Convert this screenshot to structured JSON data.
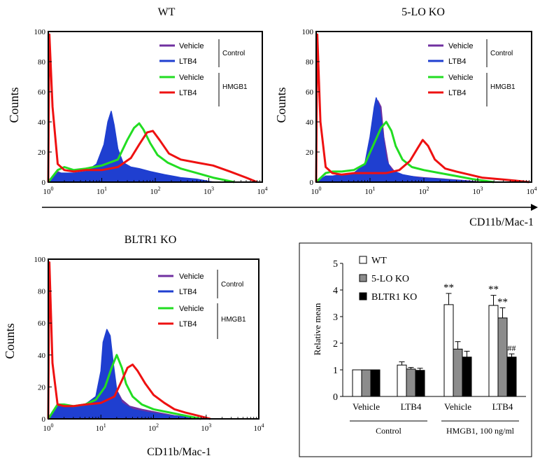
{
  "figure": {
    "shared_x_label": "CD11b/Mac-1",
    "bottom_x_label": "CD11b/Mac-1"
  },
  "chart_data": [
    {
      "type": "area",
      "title": "WT",
      "ylabel": "Counts",
      "xlabel": "",
      "x_scale": "log",
      "xlim": [
        1,
        10000
      ],
      "ylim": [
        0,
        100
      ],
      "yticks": [
        "0",
        "20",
        "40",
        "60",
        "80",
        "100"
      ],
      "xticks": [
        "10",
        "10",
        "10",
        "10",
        "10"
      ],
      "xtick_exponents": [
        "0",
        "1",
        "2",
        "3",
        "4"
      ],
      "legend": {
        "entries": [
          "Vehicle",
          "LTB4",
          "Vehicle",
          "LTB4"
        ],
        "groups": [
          "Control",
          "HMGB1"
        ]
      },
      "series": [
        {
          "name": "Control Vehicle",
          "color": "#7030a0",
          "fill": true,
          "x": [
            1,
            1.5,
            2,
            3,
            5,
            8,
            11,
            14,
            17,
            22,
            30,
            45,
            70,
            110,
            200,
            400,
            800,
            1500
          ],
          "y": [
            0,
            7,
            5,
            5,
            6,
            9,
            16,
            30,
            14,
            8,
            6,
            5,
            4,
            3,
            2,
            1,
            0.5,
            0
          ]
        },
        {
          "name": "Control LTB4",
          "color": "#1f3fd0",
          "fill": true,
          "x": [
            1,
            1.5,
            2,
            3,
            5,
            8,
            11,
            13,
            15,
            17,
            20,
            25,
            35,
            50,
            80,
            150,
            300,
            600,
            1200
          ],
          "y": [
            0,
            6,
            6,
            6,
            7,
            12,
            25,
            40,
            47,
            38,
            22,
            13,
            10,
            9,
            7,
            5,
            3,
            2,
            0
          ]
        },
        {
          "name": "HMGB1 Vehicle",
          "color": "#22dd22",
          "fill": false,
          "x": [
            1,
            1.5,
            2,
            3,
            5,
            10,
            20,
            30,
            40,
            50,
            60,
            80,
            110,
            170,
            300,
            600,
            1200,
            3000
          ],
          "y": [
            0,
            8,
            10,
            8,
            9,
            11,
            15,
            28,
            36,
            39,
            35,
            26,
            18,
            13,
            9,
            6,
            3,
            0
          ]
        },
        {
          "name": "HMGB1 LTB4",
          "color": "#ee1111",
          "fill": false,
          "x": [
            1,
            1.05,
            1.2,
            1.5,
            2,
            3,
            5,
            10,
            20,
            35,
            50,
            70,
            90,
            120,
            180,
            300,
            600,
            1200,
            2500,
            5000,
            8000
          ],
          "y": [
            0,
            98,
            50,
            12,
            8,
            7,
            8,
            8,
            10,
            16,
            25,
            33,
            34,
            28,
            19,
            15,
            13,
            11,
            7,
            3,
            0
          ]
        }
      ]
    },
    {
      "type": "area",
      "title": "5-LO KO",
      "ylabel": "Counts",
      "xlabel": "",
      "x_scale": "log",
      "xlim": [
        1,
        10000
      ],
      "ylim": [
        0,
        100
      ],
      "yticks": [
        "0",
        "20",
        "40",
        "60",
        "80",
        "100"
      ],
      "xticks": [
        "10",
        "10",
        "10",
        "10",
        "10"
      ],
      "xtick_exponents": [
        "0",
        "1",
        "2",
        "3",
        "4"
      ],
      "legend": {
        "entries": [
          "Vehicle",
          "LTB4",
          "Vehicle",
          "LTB4"
        ],
        "groups": [
          "Control",
          "HMGB1"
        ]
      },
      "series": [
        {
          "name": "Control Vehicle",
          "color": "#7030a0",
          "fill": true,
          "x": [
            1,
            1.5,
            2,
            3,
            5,
            8,
            10,
            12,
            14,
            16,
            18,
            22,
            30,
            50,
            100,
            250,
            600,
            1200
          ],
          "y": [
            0,
            4,
            4,
            5,
            6,
            10,
            25,
            44,
            54,
            50,
            30,
            12,
            6,
            4,
            3,
            2,
            1,
            0
          ]
        },
        {
          "name": "Control LTB4",
          "color": "#1f3fd0",
          "fill": true,
          "x": [
            1,
            1.5,
            2,
            3,
            5,
            8,
            10,
            12,
            13,
            15,
            17,
            20,
            25,
            40,
            80,
            200,
            500,
            1000
          ],
          "y": [
            0,
            4,
            4,
            5,
            6,
            12,
            30,
            50,
            56,
            50,
            34,
            15,
            8,
            5,
            3,
            2,
            1,
            0
          ]
        },
        {
          "name": "HMGB1 Vehicle",
          "color": "#22dd22",
          "fill": false,
          "x": [
            1,
            1.5,
            2,
            3,
            5,
            8,
            12,
            16,
            20,
            25,
            30,
            40,
            60,
            100,
            200,
            400,
            800,
            2000
          ],
          "y": [
            0,
            6,
            7,
            7,
            8,
            12,
            26,
            36,
            40,
            34,
            24,
            15,
            10,
            8,
            6,
            4,
            2,
            0
          ]
        },
        {
          "name": "HMGB1 LTB4",
          "color": "#ee1111",
          "fill": false,
          "x": [
            1,
            1.05,
            1.2,
            1.5,
            2,
            3,
            5,
            10,
            20,
            35,
            55,
            75,
            95,
            120,
            160,
            250,
            400,
            700,
            1200,
            2500,
            5000,
            9000
          ],
          "y": [
            0,
            98,
            40,
            10,
            6,
            5,
            6,
            6,
            6,
            8,
            14,
            22,
            28,
            24,
            15,
            9,
            7,
            5,
            3,
            2,
            1,
            0
          ]
        }
      ]
    },
    {
      "type": "area",
      "title": "BLTR1 KO",
      "ylabel": "Counts",
      "xlabel": "CD11b/Mac-1",
      "x_scale": "log",
      "xlim": [
        1,
        10000
      ],
      "ylim": [
        0,
        100
      ],
      "yticks": [
        "0",
        "20",
        "40",
        "60",
        "80",
        "100"
      ],
      "xticks": [
        "10",
        "10",
        "10",
        "10",
        "10"
      ],
      "xtick_exponents": [
        "0",
        "1",
        "2",
        "3",
        "4"
      ],
      "legend": {
        "entries": [
          "Vehicle",
          "LTB4",
          "Vehicle",
          "LTB4"
        ],
        "groups": [
          "Control",
          "HMGB1"
        ]
      },
      "series": [
        {
          "name": "Control Vehicle",
          "color": "#7030a0",
          "fill": true,
          "x": [
            1,
            1.5,
            2,
            3,
            5,
            8,
            10,
            12,
            14,
            16,
            20,
            25,
            35,
            60,
            120,
            250,
            500,
            1000
          ],
          "y": [
            0,
            8,
            8,
            7,
            8,
            12,
            24,
            40,
            46,
            36,
            18,
            12,
            8,
            6,
            4,
            2,
            1,
            0
          ]
        },
        {
          "name": "Control LTB4",
          "color": "#1f3fd0",
          "fill": true,
          "x": [
            1,
            1.5,
            2,
            3,
            5,
            8,
            10,
            11,
            13,
            15,
            17,
            20,
            25,
            40,
            80,
            200,
            500,
            1000
          ],
          "y": [
            0,
            9,
            9,
            8,
            9,
            14,
            30,
            48,
            56,
            52,
            36,
            18,
            10,
            6,
            4,
            2,
            1,
            0
          ]
        },
        {
          "name": "HMGB1 Vehicle",
          "color": "#22dd22",
          "fill": false,
          "x": [
            1,
            1.5,
            2,
            3,
            5,
            8,
            12,
            16,
            20,
            25,
            30,
            40,
            60,
            100,
            200,
            400,
            800
          ],
          "y": [
            0,
            9,
            9,
            8,
            9,
            12,
            20,
            32,
            40,
            32,
            22,
            14,
            9,
            6,
            4,
            2,
            0
          ]
        },
        {
          "name": "HMGB1 LTB4",
          "color": "#ee1111",
          "fill": false,
          "x": [
            1,
            1.05,
            1.2,
            1.5,
            2,
            3,
            5,
            10,
            18,
            25,
            32,
            40,
            50,
            70,
            100,
            160,
            250,
            400,
            700,
            1200
          ],
          "y": [
            0,
            98,
            35,
            9,
            8,
            8,
            9,
            10,
            14,
            24,
            32,
            34,
            30,
            22,
            15,
            10,
            6,
            4,
            2,
            0
          ]
        }
      ]
    },
    {
      "type": "bar",
      "title": "",
      "ylabel": "Relative mean",
      "xlabel": "",
      "ylim": [
        0,
        5
      ],
      "yticks": [
        "0",
        "1",
        "2",
        "3",
        "4",
        "5"
      ],
      "categories": [
        "Vehicle",
        "LTB4",
        "Vehicle",
        "LTB4"
      ],
      "groups": [
        {
          "label": "Control",
          "categories": [
            0,
            1
          ]
        },
        {
          "label": "HMGB1, 100 ng/ml",
          "categories": [
            2,
            3
          ]
        }
      ],
      "series": [
        {
          "name": "WT",
          "color": "#ffffff",
          "values": [
            1.0,
            1.18,
            3.45,
            3.42
          ],
          "errors": [
            0,
            0.12,
            0.42,
            0.38
          ]
        },
        {
          "name": "5-LO KO",
          "color": "#8c8c8c",
          "values": [
            1.0,
            1.03,
            1.78,
            2.95
          ],
          "errors": [
            0,
            0.06,
            0.28,
            0.38
          ]
        },
        {
          "name": "BLTR1 KO",
          "color": "#000000",
          "values": [
            1.0,
            0.98,
            1.48,
            1.48
          ],
          "errors": [
            0,
            0.08,
            0.22,
            0.12
          ]
        }
      ],
      "annotations": [
        {
          "text": "**",
          "category": 2,
          "series": 0
        },
        {
          "text": "**",
          "category": 3,
          "series": 0
        },
        {
          "text": "**",
          "category": 3,
          "series": 1
        },
        {
          "text": "##",
          "category": 3,
          "series": 2
        }
      ]
    }
  ]
}
